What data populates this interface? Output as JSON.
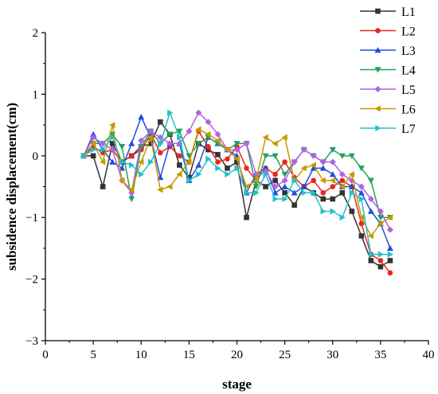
{
  "chart_data": {
    "type": "line",
    "title": "",
    "xlabel": "stage",
    "ylabel": "subsidence displacement(cm)",
    "xlim": [
      0,
      40
    ],
    "ylim": [
      -3,
      2
    ],
    "xticks": [
      0,
      5,
      10,
      15,
      20,
      25,
      30,
      35,
      40
    ],
    "yticks": [
      -3,
      -2,
      -1,
      0,
      1,
      2
    ],
    "grid": false,
    "legend_position": "top-right",
    "x": [
      4,
      5,
      6,
      7,
      8,
      9,
      10,
      11,
      12,
      13,
      14,
      15,
      16,
      17,
      18,
      19,
      20,
      21,
      22,
      23,
      24,
      25,
      26,
      27,
      28,
      29,
      30,
      31,
      32,
      33,
      34,
      35,
      36
    ],
    "series": [
      {
        "name": "L1",
        "color": "#333333",
        "marker": "square",
        "values": [
          0,
          0,
          -0.5,
          0.2,
          -0.1,
          0,
          0.15,
          0.2,
          0.55,
          0.35,
          -0.15,
          -0.35,
          0.2,
          0.1,
          0.02,
          -0.2,
          -0.1,
          -1,
          -0.4,
          -0.5,
          -0.4,
          -0.6,
          -0.8,
          -0.5,
          -0.6,
          -0.7,
          -0.7,
          -0.6,
          -0.9,
          -1.3,
          -1.7,
          -1.8,
          -1.7
        ]
      },
      {
        "name": "L2",
        "color": "#e8261f",
        "marker": "circle",
        "values": [
          0,
          0.15,
          0.05,
          0.1,
          -0.1,
          0,
          0.1,
          0.35,
          0.05,
          0.15,
          0,
          -0.1,
          0.4,
          0.15,
          -0.1,
          -0.05,
          0.15,
          -0.2,
          -0.4,
          -0.2,
          -0.3,
          -0.1,
          -0.35,
          -0.5,
          -0.4,
          -0.6,
          -0.5,
          -0.4,
          -0.5,
          -1.1,
          -1.6,
          -1.7,
          -1.9
        ]
      },
      {
        "name": "L3",
        "color": "#1f4fd9",
        "marker": "triangle-up",
        "values": [
          0,
          0.35,
          0.1,
          -0.1,
          -0.2,
          0.2,
          0.63,
          0.3,
          -0.35,
          0.2,
          0.2,
          -0.4,
          -0.15,
          0.3,
          0.2,
          0.1,
          0,
          -0.6,
          -0.3,
          -0.2,
          -0.6,
          -0.5,
          -0.6,
          -0.5,
          -0.2,
          -0.2,
          -0.3,
          -0.5,
          -0.5,
          -0.6,
          -0.9,
          -1.1,
          -1.5
        ]
      },
      {
        "name": "L4",
        "color": "#22a05a",
        "marker": "triangle-down",
        "values": [
          0,
          0.2,
          0.2,
          0.35,
          0.15,
          -0.7,
          0.15,
          0.4,
          0.2,
          0.35,
          0.4,
          0,
          0.2,
          0.3,
          0.2,
          0.1,
          0.2,
          0.2,
          -0.5,
          0,
          0,
          -0.3,
          -0.1,
          0.1,
          0,
          -0.1,
          0.1,
          0,
          0,
          -0.2,
          -0.4,
          -1,
          -1
        ]
      },
      {
        "name": "L5",
        "color": "#b061e6",
        "marker": "diamond",
        "values": [
          0,
          0.3,
          0.2,
          0.1,
          -0.4,
          -0.6,
          0.25,
          0.4,
          0.3,
          0.2,
          0.2,
          0.4,
          0.7,
          0.55,
          0.35,
          0.1,
          0.1,
          0.2,
          -0.3,
          -0.25,
          -0.5,
          -0.4,
          -0.1,
          0.1,
          0,
          -0.1,
          -0.1,
          -0.3,
          -0.4,
          -0.5,
          -0.7,
          -0.9,
          -1.2
        ]
      },
      {
        "name": "L6",
        "color": "#c49a00",
        "marker": "triangle-left",
        "values": [
          0,
          0.2,
          -0.1,
          0.5,
          -0.4,
          -0.55,
          -0.1,
          0.3,
          -0.55,
          -0.5,
          -0.3,
          -0.1,
          0.43,
          0.35,
          0.25,
          0.1,
          -0.05,
          -0.5,
          -0.4,
          0.3,
          0.2,
          0.3,
          -0.4,
          -0.2,
          -0.15,
          -0.4,
          -0.4,
          -0.5,
          -0.3,
          -1,
          -1.3,
          -1.1,
          -1
        ]
      },
      {
        "name": "L7",
        "color": "#22c0cc",
        "marker": "triangle-right",
        "values": [
          0,
          0.1,
          0.1,
          0.3,
          -0.1,
          -0.15,
          -0.3,
          -0.1,
          0.2,
          0.7,
          0.3,
          -0.4,
          -0.3,
          -0.05,
          -0.2,
          -0.3,
          -0.2,
          -0.6,
          -0.6,
          -0.3,
          -0.7,
          -0.7,
          -0.4,
          -0.6,
          -0.6,
          -0.9,
          -0.9,
          -1,
          -0.6,
          -0.7,
          -1.6,
          -1.6,
          -1.6
        ]
      }
    ]
  }
}
